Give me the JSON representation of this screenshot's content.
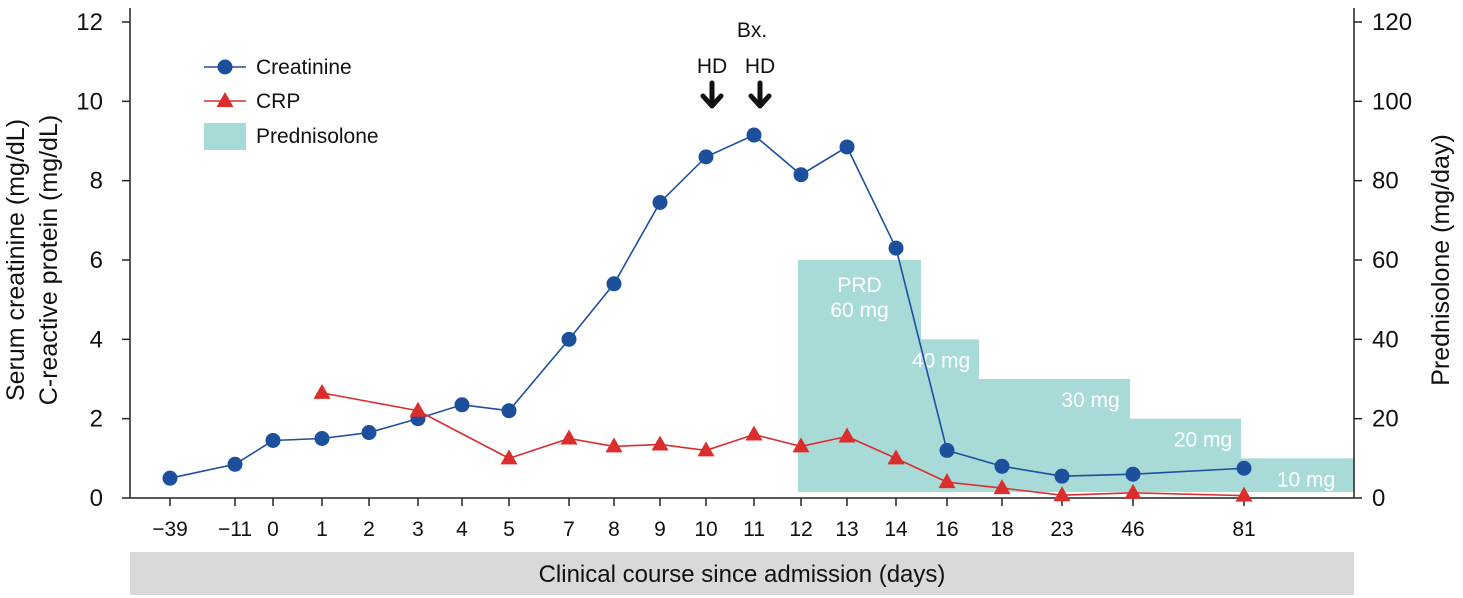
{
  "chart_data": {
    "type": "line",
    "xlabel": "Clinical course since admission (days)",
    "ylabel_left": [
      "Serum creatinine (mg/dL)",
      "C-reactive protein (mg/dL)"
    ],
    "ylabel_right": "Prednisolone (mg/day)",
    "ylim_left": [
      0,
      12
    ],
    "ylim_right": [
      0,
      120
    ],
    "yticks_left": [
      "0",
      "2",
      "4",
      "6",
      "8",
      "10",
      "12"
    ],
    "yticks_right": [
      "0",
      "20",
      "40",
      "60",
      "80",
      "100",
      "120"
    ],
    "categories": [
      "−39",
      "−11",
      "0",
      "1",
      "2",
      "3",
      "4",
      "5",
      "7",
      "8",
      "9",
      "10",
      "11",
      "12",
      "13",
      "14",
      "16",
      "18",
      "23",
      "46",
      "81"
    ],
    "series": [
      {
        "name": "Creatinine",
        "color": "#1c4f9c",
        "marker": "circle",
        "values": [
          0.5,
          0.85,
          1.45,
          1.5,
          1.65,
          2.0,
          2.35,
          2.2,
          4.0,
          5.4,
          7.45,
          8.6,
          9.15,
          8.15,
          8.85,
          6.3,
          1.2,
          0.8,
          0.55,
          0.6,
          0.75
        ]
      },
      {
        "name": "CRP",
        "color": "#dc2d2d",
        "marker": "triangle",
        "values": [
          null,
          null,
          null,
          2.65,
          null,
          2.2,
          null,
          1.0,
          1.5,
          1.3,
          1.35,
          1.2,
          1.6,
          1.3,
          1.55,
          1.0,
          0.4,
          0.25,
          0.07,
          0.13,
          0.06
        ]
      }
    ],
    "prednisolone": {
      "name": "Prednisolone",
      "color": "#a8dbd8",
      "axis": "right",
      "steps": [
        {
          "from": "12",
          "to": "15",
          "dose": 60,
          "label": [
            "PRD",
            "60 mg"
          ]
        },
        {
          "from": "15",
          "to": "17",
          "dose": 40,
          "label": [
            "40 mg"
          ]
        },
        {
          "from": "17",
          "to": "46",
          "dose": 30,
          "label": [
            "30 mg"
          ]
        },
        {
          "from": "46",
          "to": "81",
          "dose": 20,
          "label": [
            "20 mg"
          ]
        },
        {
          "from": "81",
          "to": "end",
          "dose": 10,
          "label": [
            "10 mg"
          ]
        }
      ]
    },
    "annotations": [
      {
        "text": "HD",
        "at": "10",
        "arrow": "down"
      },
      {
        "text": "HD",
        "at": "11",
        "arrow": "down"
      },
      {
        "text": "Bx.",
        "at": "11"
      }
    ],
    "legend": {
      "position": "top-left",
      "entries": [
        "Creatinine",
        "CRP",
        "Prednisolone"
      ]
    },
    "grid": false
  }
}
